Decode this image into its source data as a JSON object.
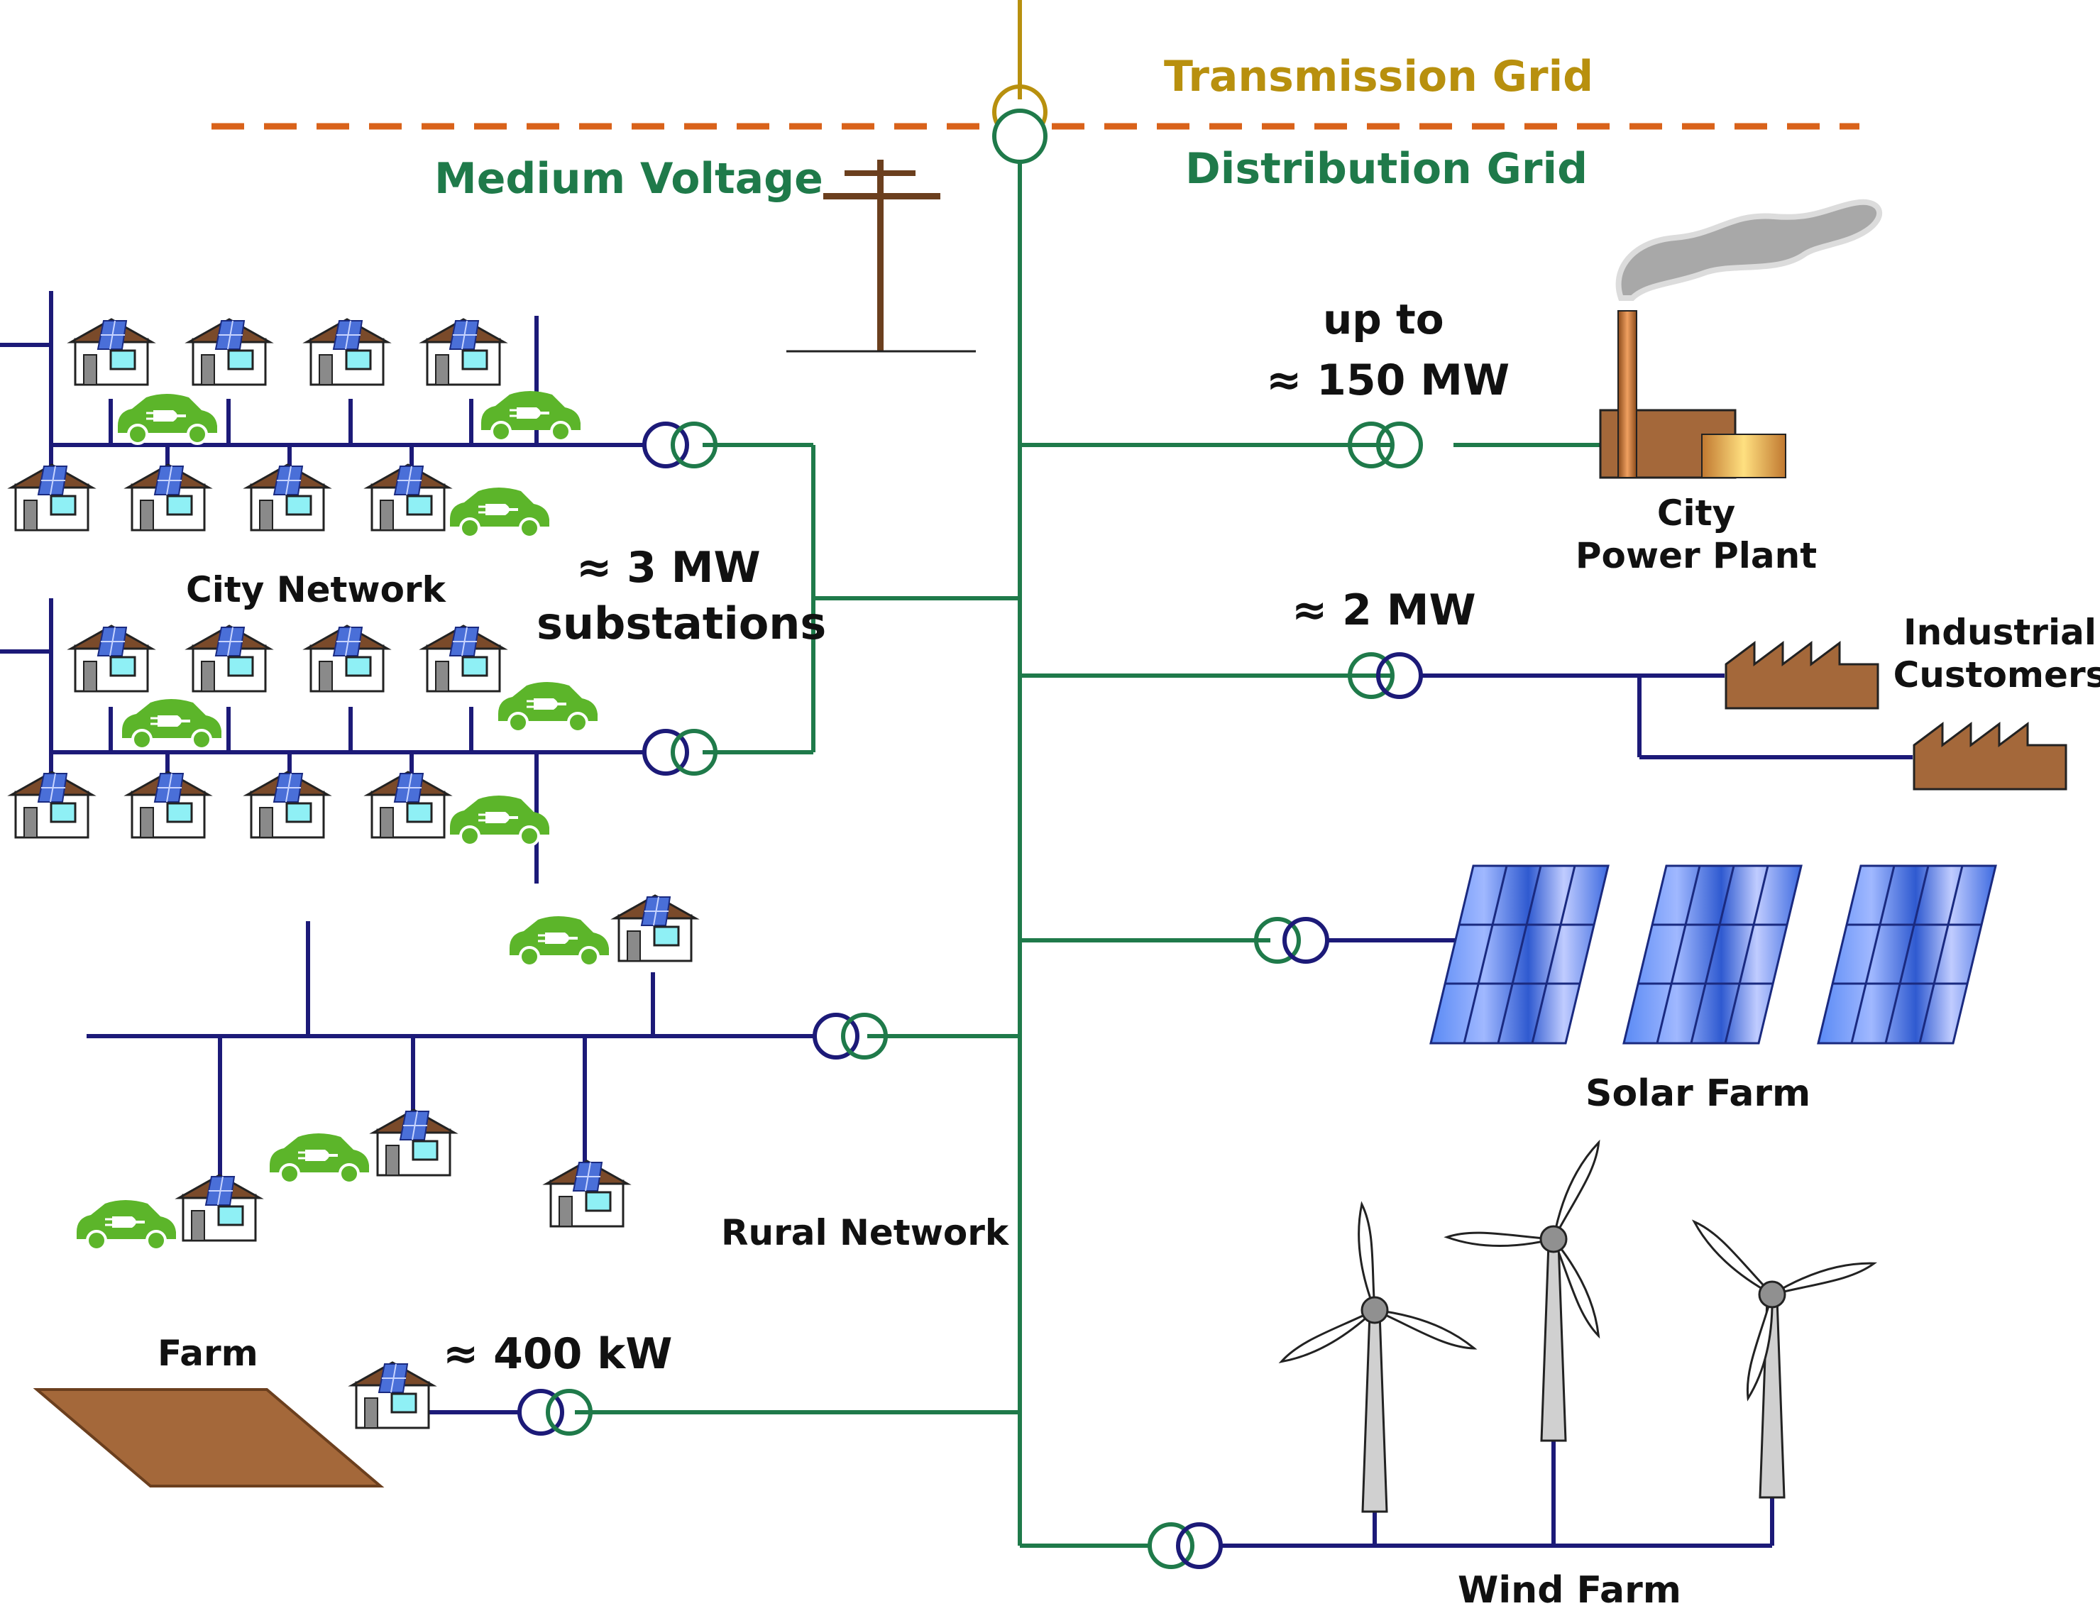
{
  "labels": {
    "transmission_grid": "Transmission Grid",
    "medium_voltage": "Medium Voltage",
    "distribution_grid": "Distribution Grid",
    "up_to": "up to",
    "mw_150": "≈ 150  MW",
    "city": "City",
    "power_plant": "Power Plant",
    "mw_2": "≈ 2  MW",
    "industrial": "Industrial",
    "customers": "Customers",
    "mw_3": "≈ 3  MW",
    "substations": "substations",
    "city_network": "City Network",
    "solar_farm": "Solar Farm",
    "rural_network": "Rural Network",
    "farm": "Farm",
    "kw_400": "≈ 400 kW",
    "wind_farm": "Wind Farm"
  },
  "colors": {
    "transmission": "#b8900e",
    "dashed_boundary": "#d9621a",
    "medium_voltage": "#1f7a4a",
    "low_voltage": "#1c1a78",
    "house_wall": "#ffffff",
    "house_roof": "#7a4a2a",
    "house_window": "#8ff0f5",
    "ev": "#5cb52a",
    "factory": "#a4683a",
    "solar_panel": "#3d6ae0",
    "turbine": "#d0d0d0",
    "pole": "#6b3f1e",
    "farm_field": "#a4683a"
  }
}
